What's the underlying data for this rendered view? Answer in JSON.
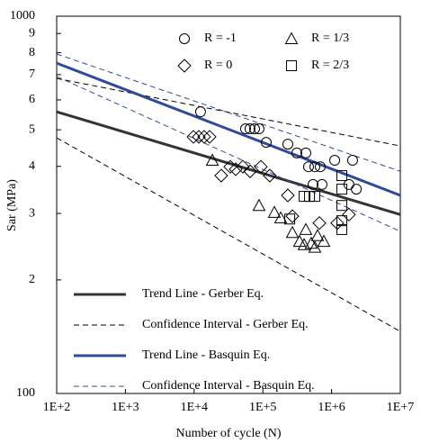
{
  "chart_data": {
    "type": "scatter",
    "xlabel": "Number of cycle (N)",
    "ylabel": "Sar (MPa)",
    "xscale": "log",
    "yscale": "log",
    "xlim": [
      100,
      10000000
    ],
    "ylim": [
      100,
      1000
    ],
    "xticks": [
      {
        "value": 100,
        "label": "1E+2"
      },
      {
        "value": 1000,
        "label": "1E+3"
      },
      {
        "value": 10000,
        "label": "1E+4"
      },
      {
        "value": 100000,
        "label": "1E+5"
      },
      {
        "value": 1000000,
        "label": "1E+6"
      },
      {
        "value": 10000000,
        "label": "1E+7"
      }
    ],
    "yticks": [
      100,
      {
        "value": 200,
        "label": "2"
      },
      {
        "value": 300,
        "label": "3"
      },
      {
        "value": 400,
        "label": "4"
      },
      {
        "value": 500,
        "label": "5"
      },
      {
        "value": 600,
        "label": "6"
      },
      {
        "value": 700,
        "label": "7"
      },
      {
        "value": 800,
        "label": "8"
      },
      {
        "value": 900,
        "label": "9"
      },
      1000
    ],
    "series": [
      {
        "name": "R = -1",
        "marker": "circle",
        "color": "#000000",
        "x": [
          12400,
          56000,
          65000,
          75800,
          88000,
          112000,
          231000,
          312000,
          422000,
          462000,
          571000,
          684000,
          537000,
          726000,
          1110000,
          2020000,
          1790000,
          2290000
        ],
        "values": [
          558,
          503,
          503,
          503,
          503,
          463,
          458,
          434,
          434,
          399,
          399,
          399,
          358,
          358,
          415,
          415,
          358,
          348
        ]
      },
      {
        "name": "R = 1/3",
        "marker": "triangle",
        "color": "#000000",
        "x": [
          18400,
          88000,
          147000,
          182000,
          269000,
          342000,
          422000,
          506000,
          625000,
          771000,
          398000,
          571000
        ],
        "values": [
          415,
          315,
          302,
          292,
          267,
          253,
          272,
          250,
          262,
          253,
          248,
          244
        ]
      },
      {
        "name": "R = 0",
        "marker": "diamond",
        "color": "#000000",
        "x": [
          9770,
          11700,
          14000,
          16800,
          24800,
          33600,
          40300,
          51200,
          65200,
          93500,
          126000,
          231000,
          269000,
          664000,
          1210000,
          1790000
        ],
        "values": [
          479,
          479,
          479,
          479,
          378,
          399,
          393,
          399,
          388,
          399,
          378,
          335,
          295,
          283,
          283,
          298
        ]
      },
      {
        "name": "R = 2/3",
        "marker": "square",
        "color": "#000000",
        "x": [
          398000,
          477000,
          571000,
          246000,
          1410000,
          1410000,
          1410000,
          1410000,
          1410000
        ],
        "values": [
          333,
          333,
          333,
          290,
          378,
          348,
          315,
          287,
          272
        ]
      }
    ],
    "lines": [
      {
        "name": "Trend Line - Gerber Eq.",
        "color": "#333333",
        "width": 3,
        "dash": false,
        "x": [
          100,
          10000000
        ],
        "values": [
          558,
          298
        ]
      },
      {
        "name": "Confidence Interval - Gerber Eq.",
        "color": "#000000",
        "width": 1,
        "dash": true,
        "x": [
          100,
          10000000
        ],
        "values": [
          684,
          453
        ]
      },
      {
        "name": "Trend Line - Basquin Eq.",
        "color": "#2f4a9c",
        "width": 3,
        "dash": false,
        "x": [
          100,
          10000000
        ],
        "values": [
          751,
          335
        ]
      },
      {
        "name": "Confidence Interval - Basquin Eq.",
        "color": "#2f4a9c",
        "width": 1,
        "dash": true,
        "x": [
          100,
          10000000
        ],
        "values": [
          794,
          388
        ]
      }
    ],
    "lower_bounds": [
      {
        "line": 1,
        "x": [
          100,
          10000000
        ],
        "values": [
          476,
          146
        ]
      },
      {
        "line": 3,
        "x": [
          100,
          10000000
        ],
        "values": [
          692,
          269
        ]
      }
    ]
  }
}
